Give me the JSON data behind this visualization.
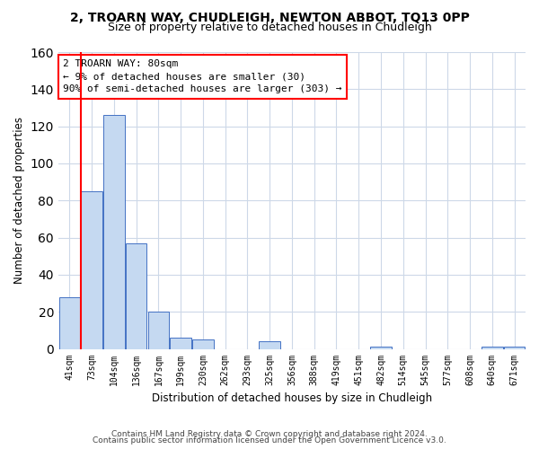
{
  "title": "2, TROARN WAY, CHUDLEIGH, NEWTON ABBOT, TQ13 0PP",
  "subtitle": "Size of property relative to detached houses in Chudleigh",
  "bar_labels": [
    "41sqm",
    "73sqm",
    "104sqm",
    "136sqm",
    "167sqm",
    "199sqm",
    "230sqm",
    "262sqm",
    "293sqm",
    "325sqm",
    "356sqm",
    "388sqm",
    "419sqm",
    "451sqm",
    "482sqm",
    "514sqm",
    "545sqm",
    "577sqm",
    "608sqm",
    "640sqm",
    "671sqm"
  ],
  "bar_values": [
    28,
    85,
    126,
    57,
    20,
    6,
    5,
    0,
    0,
    4,
    0,
    0,
    0,
    0,
    1,
    0,
    0,
    0,
    0,
    1,
    1
  ],
  "bar_color": "#c5d9f1",
  "bar_edge_color": "#4472c4",
  "highlight_bar_index": 1,
  "highlight_color": "#ff0000",
  "ylabel": "Number of detached properties",
  "xlabel": "Distribution of detached houses by size in Chudleigh",
  "ylim": [
    0,
    160
  ],
  "yticks": [
    0,
    20,
    40,
    60,
    80,
    100,
    120,
    140,
    160
  ],
  "annotation_title": "2 TROARN WAY: 80sqm",
  "annotation_line1": "← 9% of detached houses are smaller (30)",
  "annotation_line2": "90% of semi-detached houses are larger (303) →",
  "footer_line1": "Contains HM Land Registry data © Crown copyright and database right 2024.",
  "footer_line2": "Contains public sector information licensed under the Open Government Licence v3.0.",
  "background_color": "#ffffff",
  "grid_color": "#cdd8e8"
}
